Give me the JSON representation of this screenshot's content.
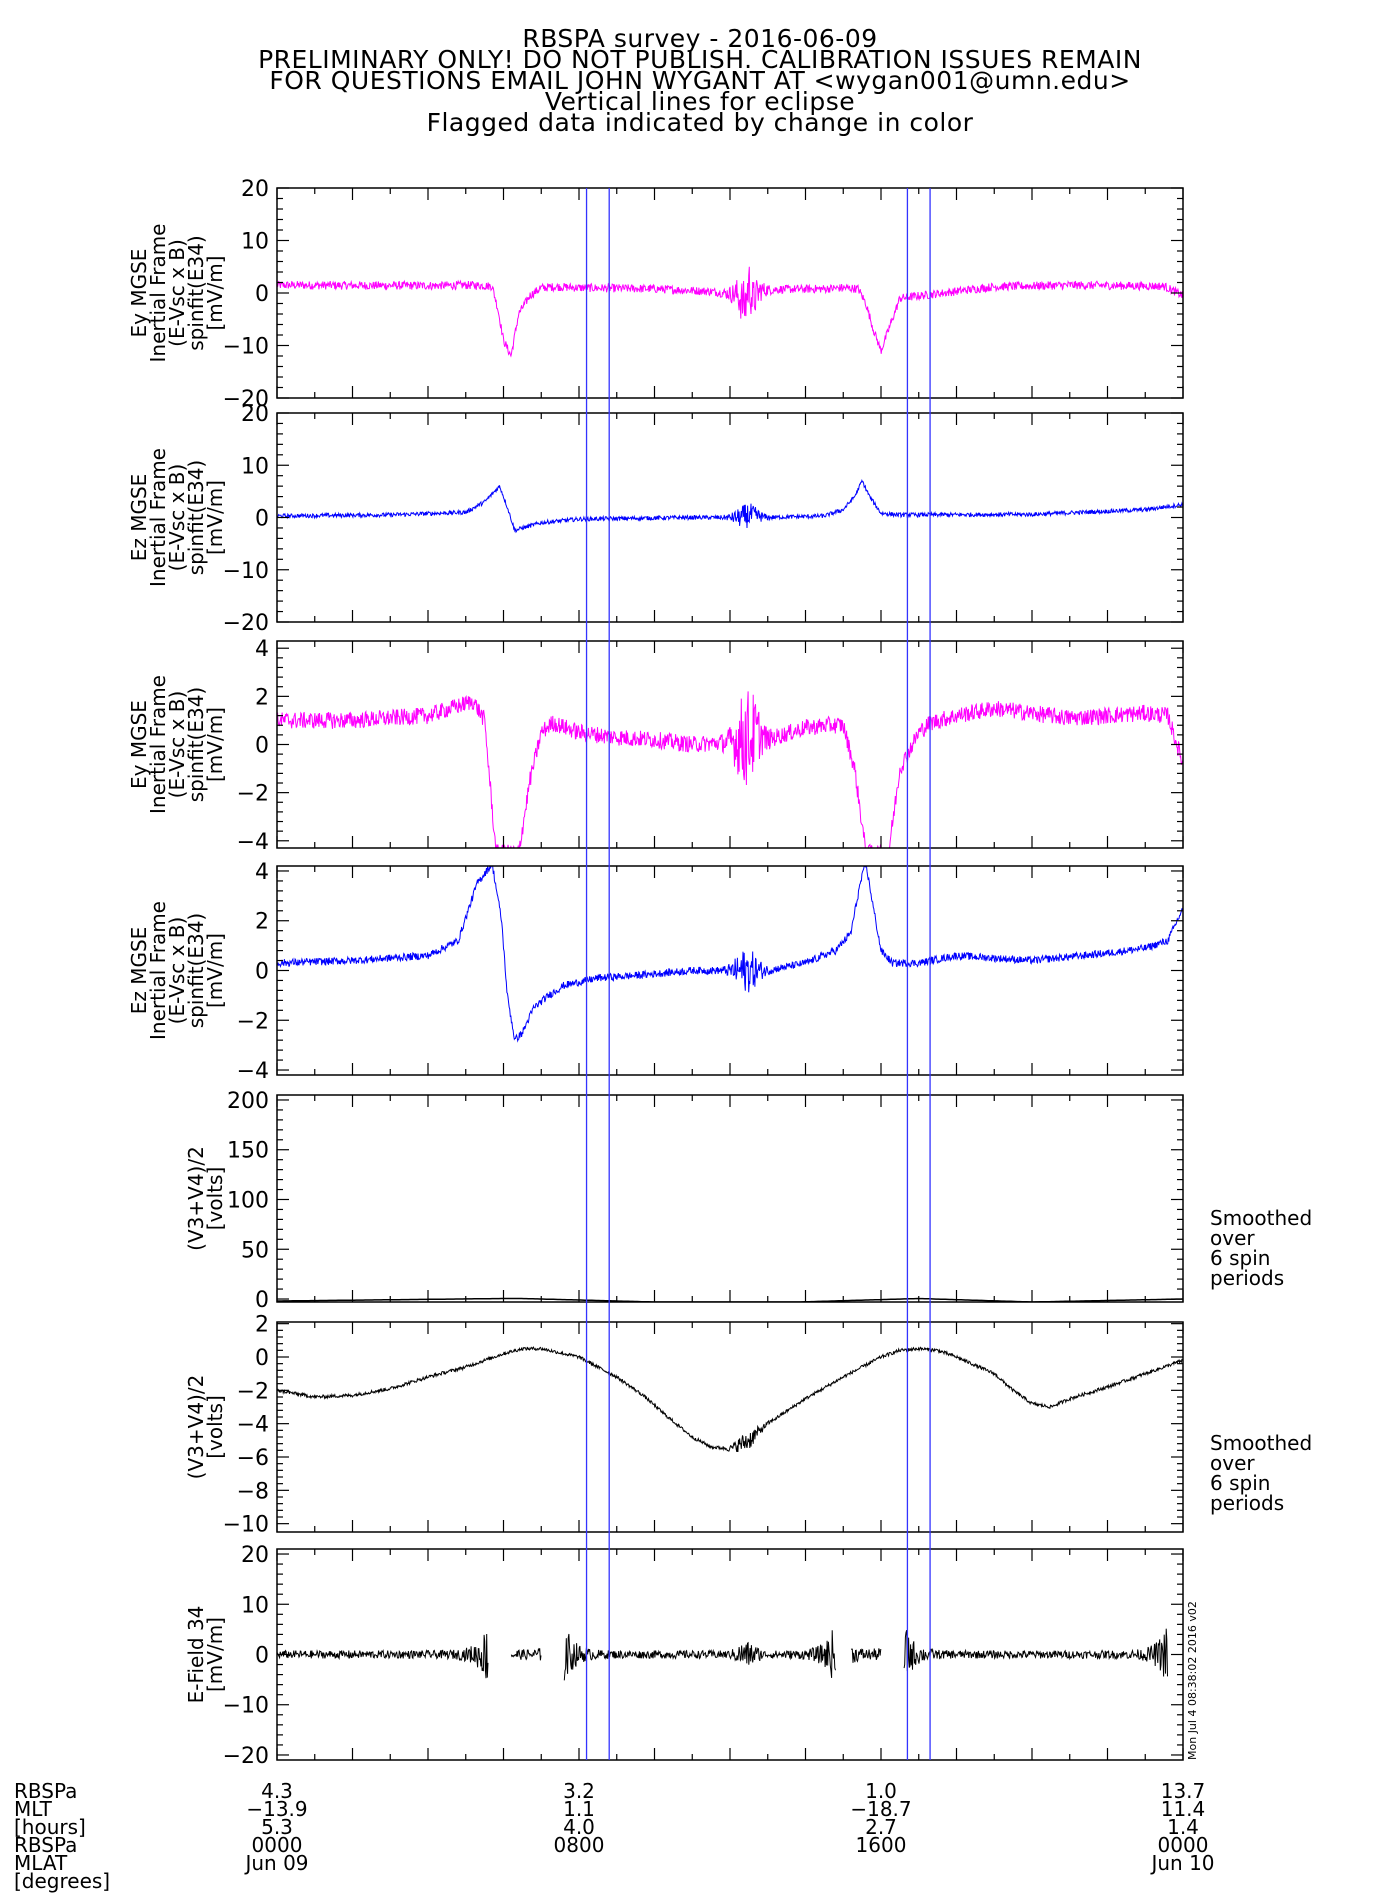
{
  "header": {
    "lines": [
      "RBSPA survey - 2016-06-09",
      "PRELIMINARY ONLY! DO NOT PUBLISH. CALIBRATION ISSUES REMAIN",
      "FOR QUESTIONS EMAIL JOHN WYGANT AT <wygan001@umn.edu>",
      "Vertical lines for eclipse",
      "Flagged data indicated by change in color"
    ]
  },
  "colors": {
    "magenta": "#ff00ff",
    "blue": "#0000ff",
    "black": "#000000",
    "eclipse": "#3333ff"
  },
  "eclipse_hours": [
    8.2,
    8.8,
    16.7,
    17.3
  ],
  "stamp": "Mon Jul  4 08:38:02 2016 v02",
  "chart_data": [
    {
      "type": "line",
      "ylabel": [
        "Ey MGSE",
        "Inertial Frame",
        "(E-Vsc x B)",
        "spinfit(E34)",
        "[mV/m]"
      ],
      "ylim": [
        -20,
        20
      ],
      "yticks": [
        -20,
        -10,
        0,
        10,
        20
      ],
      "xlim": [
        0,
        24
      ],
      "color": "magenta",
      "noise": 0.8,
      "x": [
        0,
        4,
        5.2,
        5.7,
        5.85,
        6.0,
        6.2,
        6.4,
        6.7,
        7.0,
        7.4,
        8.0,
        10,
        11.5,
        12.2,
        12.4,
        12.5,
        12.6,
        12.8,
        13.3,
        14.5,
        15.0,
        15.4,
        15.6,
        15.8,
        16.0,
        16.5,
        19,
        21,
        23.5,
        24
      ],
      "y": [
        1.5,
        1.4,
        1.5,
        1.3,
        -3,
        -9,
        -12,
        -4,
        -0.5,
        1.0,
        1.2,
        1.0,
        0.8,
        0.3,
        -0.3,
        -2.5,
        2.0,
        -1.5,
        0.5,
        0.7,
        0.8,
        1.0,
        0.8,
        -2,
        -7,
        -11,
        -1,
        1.2,
        1.5,
        1.3,
        -0.5
      ]
    },
    {
      "type": "line",
      "ylabel": [
        "Ez MGSE",
        "Inertial Frame",
        "(E-Vsc x B)",
        "spinfit(E34)",
        "[mV/m]"
      ],
      "ylim": [
        -20,
        20
      ],
      "yticks": [
        -20,
        -10,
        0,
        10,
        20
      ],
      "xlim": [
        0,
        24
      ],
      "color": "blue",
      "noise": 0.4,
      "x": [
        0,
        3,
        5.0,
        5.5,
        5.9,
        6.1,
        6.3,
        6.5,
        7.0,
        8.0,
        11,
        12.3,
        12.5,
        13,
        14.5,
        15.0,
        15.3,
        15.5,
        15.7,
        16.0,
        16.5,
        20,
        23,
        24
      ],
      "y": [
        0.3,
        0.5,
        1,
        3,
        6,
        2,
        -2.5,
        -2.0,
        -1.0,
        -0.3,
        0,
        0,
        0.5,
        0,
        0.3,
        1.5,
        4,
        7,
        4,
        0.8,
        0.5,
        0.6,
        1.5,
        2.5
      ]
    },
    {
      "type": "line",
      "ylabel": [
        "Ey MGSE",
        "Inertial Frame",
        "(E-Vsc x B)",
        "spinfit(E34)",
        "[mV/m]"
      ],
      "ylim": [
        -4.3,
        4.3
      ],
      "yticks": [
        -4,
        -2,
        0,
        2,
        4
      ],
      "xlim": [
        0,
        24
      ],
      "color": "magenta",
      "noise": 0.35,
      "x": [
        0,
        2,
        4,
        5.2,
        5.5,
        5.8,
        6.1,
        6.4,
        6.7,
        7.0,
        7.3,
        8,
        9,
        10,
        11,
        12,
        12.3,
        12.5,
        12.7,
        13,
        14,
        14.6,
        15.0,
        15.3,
        15.6,
        15.9,
        16.2,
        16.5,
        17.0,
        17.3,
        18,
        19,
        20,
        21,
        22,
        23,
        23.6,
        24
      ],
      "y": [
        1.0,
        1.0,
        1.2,
        1.8,
        1.0,
        -4.5,
        -4.5,
        -4.5,
        -1.5,
        0.5,
        0.9,
        0.5,
        0.3,
        0.2,
        0.0,
        0.1,
        0.2,
        0.3,
        0.5,
        0.2,
        0.7,
        0.8,
        0.8,
        -1.0,
        -4.5,
        -4.5,
        -4.5,
        -1.0,
        0.5,
        0.9,
        1.2,
        1.5,
        1.3,
        1.1,
        1.2,
        1.3,
        1.2,
        -0.8
      ]
    },
    {
      "type": "line",
      "ylabel": [
        "Ez MGSE",
        "Inertial Frame",
        "(E-Vsc x B)",
        "spinfit(E34)",
        "[mV/m]"
      ],
      "ylim": [
        -4.2,
        4.2
      ],
      "yticks": [
        -4,
        -2,
        0,
        2,
        4
      ],
      "xlim": [
        0,
        24
      ],
      "color": "blue",
      "noise": 0.15,
      "x": [
        0,
        2,
        4,
        4.8,
        5.3,
        5.7,
        5.95,
        6.1,
        6.3,
        6.5,
        6.8,
        7.2,
        7.6,
        8.5,
        9.5,
        11,
        12,
        13,
        14,
        14.8,
        15.2,
        15.45,
        15.6,
        15.8,
        16.0,
        16.3,
        17,
        18,
        19,
        20,
        22,
        23,
        23.6,
        24
      ],
      "y": [
        0.3,
        0.4,
        0.6,
        1.2,
        3.5,
        4.3,
        2.0,
        -1.0,
        -2.8,
        -2.5,
        -1.5,
        -1.0,
        -0.6,
        -0.3,
        -0.2,
        0.0,
        0.0,
        0.0,
        0.3,
        0.8,
        1.5,
        3.5,
        4.3,
        2.5,
        0.8,
        0.3,
        0.3,
        0.6,
        0.5,
        0.4,
        0.7,
        0.9,
        1.2,
        2.5
      ]
    },
    {
      "type": "line",
      "ylabel": [
        "(V3+V4)/2",
        "[volts]"
      ],
      "ylim": [
        -3,
        205
      ],
      "yticks": [
        0,
        50,
        100,
        150,
        200
      ],
      "xlim": [
        0,
        24
      ],
      "color": "black",
      "noise": 0,
      "x": [
        0,
        6,
        6.5,
        12,
        17,
        20,
        24
      ],
      "y": [
        -2,
        0.5,
        0.5,
        -5,
        0.5,
        -3,
        0
      ],
      "note": [
        "Smoothed",
        "over",
        "6 spin",
        "periods"
      ]
    },
    {
      "type": "line",
      "ylabel": [
        "(V3+V4)/2",
        "[volts]"
      ],
      "ylim": [
        -10.5,
        2.1
      ],
      "yticks": [
        -10,
        -8,
        -6,
        -4,
        -2,
        0,
        2
      ],
      "xlim": [
        0,
        24
      ],
      "color": "black",
      "noise": 0.1,
      "x": [
        0,
        1,
        2,
        3,
        4,
        5,
        6,
        6.5,
        7,
        8,
        9,
        9.7,
        10.3,
        11,
        11.5,
        12,
        12.5,
        13,
        14,
        15,
        16,
        16.5,
        17,
        17.5,
        18,
        19,
        19.5,
        20,
        20.5,
        21,
        22,
        23,
        24
      ],
      "y": [
        -2.0,
        -2.4,
        -2.3,
        -1.9,
        -1.2,
        -0.6,
        0.2,
        0.5,
        0.5,
        0.0,
        -1.2,
        -2.3,
        -3.5,
        -4.8,
        -5.4,
        -5.5,
        -5.0,
        -4.0,
        -2.5,
        -1.2,
        0.0,
        0.4,
        0.5,
        0.4,
        0.0,
        -1.0,
        -2.0,
        -2.8,
        -3.0,
        -2.5,
        -1.8,
        -1.0,
        -0.2
      ],
      "note": [
        "Smoothed",
        "over",
        "6 spin",
        "periods"
      ]
    },
    {
      "type": "line",
      "ylabel": [
        "E-Field 34",
        "[mV/m]"
      ],
      "ylim": [
        -21,
        21
      ],
      "yticks": [
        -20,
        -10,
        0,
        10,
        20
      ],
      "xlim": [
        0,
        24
      ],
      "color": "black",
      "noise": 0
    }
  ],
  "xaxis": {
    "row_labels": [
      "RBSPa",
      "MLT",
      "[hours]",
      "RBSPa",
      "MLAT",
      "[degrees]"
    ],
    "columns": [
      {
        "hour": 0,
        "v1": "4.3",
        "v2": "-13.9",
        "v3": "5.3",
        "t1": "0000",
        "t2": "Jun 09"
      },
      {
        "hour": 8,
        "v1": "3.2",
        "v2": "1.1",
        "v3": "4.0",
        "t1": "0800",
        "t2": ""
      },
      {
        "hour": 16,
        "v1": "1.0",
        "v2": "-18.7",
        "v3": "2.7",
        "t1": "1600",
        "t2": ""
      },
      {
        "hour": 24,
        "v1": "13.7",
        "v2": "11.4",
        "v3": "1.4",
        "t1": "0000",
        "t2": "Jun 10"
      }
    ]
  }
}
